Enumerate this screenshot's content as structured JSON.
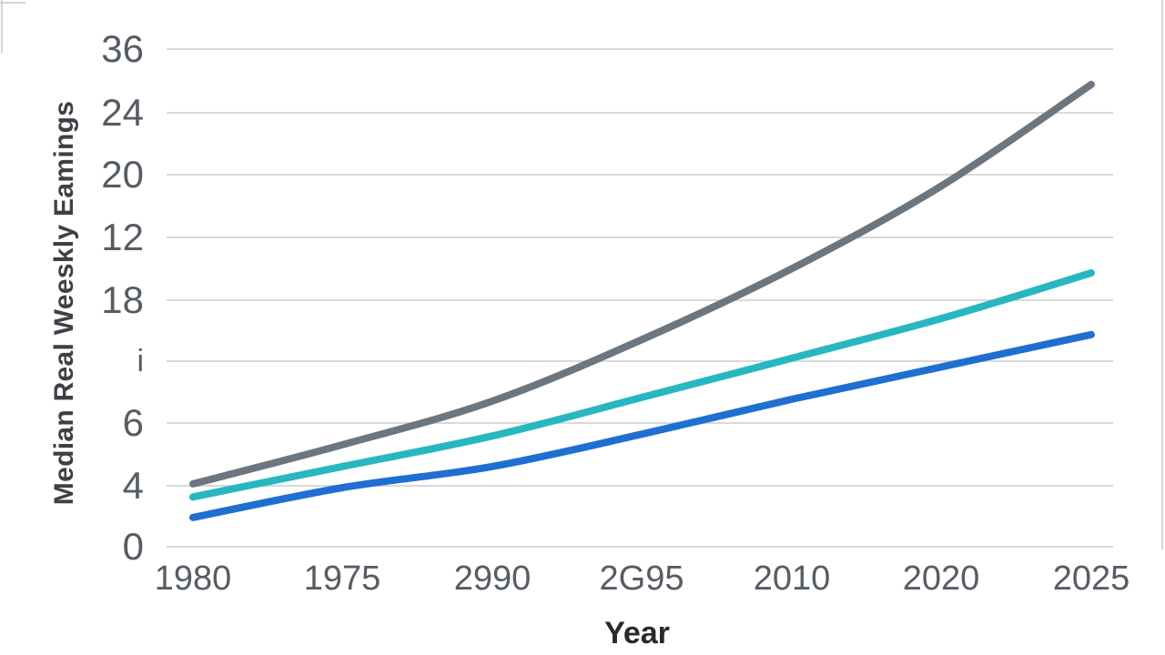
{
  "chart_data": {
    "type": "line",
    "title": "",
    "xlabel": "Year",
    "ylabel": "Median Real Weeskly Eamings",
    "categories": [
      "1980",
      "1975",
      "2990",
      "2G95",
      "2010",
      "2020",
      "2025"
    ],
    "y_ticks_top_to_bottom": [
      "36",
      "24",
      "20",
      "12",
      "18",
      "i",
      "6",
      "4",
      "0"
    ],
    "grid": "horizontal",
    "legend_position": "none",
    "value_unit": "gridline-spacings above bottom gridline (y tick labels as printed are non-monotonic)",
    "series": [
      {
        "name": "gray-line",
        "color": "#6b7680",
        "values": [
          1.01,
          1.64,
          2.34,
          3.33,
          4.47,
          5.8,
          7.43
        ]
      },
      {
        "name": "teal-line",
        "color": "#28b7c0",
        "values": [
          0.8,
          1.29,
          1.78,
          2.4,
          3.03,
          3.67,
          4.4
        ]
      },
      {
        "name": "blue-line",
        "color": "#1f6fd2",
        "values": [
          0.47,
          0.95,
          1.29,
          1.81,
          2.37,
          2.89,
          3.41
        ]
      }
    ],
    "colors": {
      "gridline": "#d9d9d9",
      "tick_text": "#565c63",
      "y_axis_title_text": "#3c4147",
      "x_axis_title_text": "#26292d",
      "frame_line": "#d3d7da"
    }
  }
}
